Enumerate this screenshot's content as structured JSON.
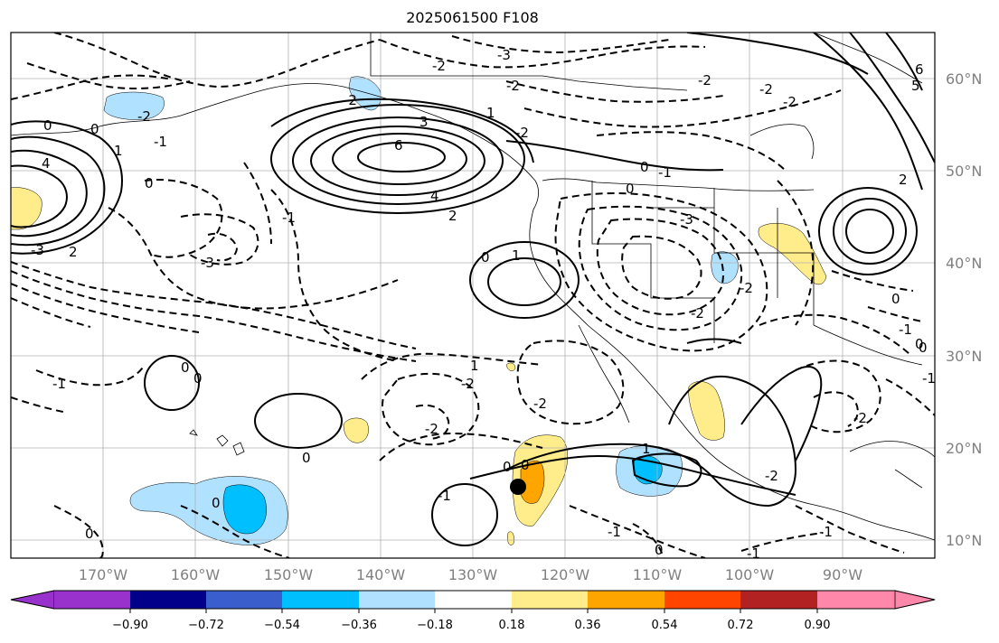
{
  "title": "2025061500 F108",
  "lat_labels": [
    "60°N",
    "50°N",
    "40°N",
    "30°N",
    "20°N",
    "10°N"
  ],
  "lon_labels": [
    "170°W",
    "160°W",
    "150°W",
    "140°W",
    "130°W",
    "120°W",
    "110°W",
    "100°W",
    "90°W"
  ],
  "colorbar": {
    "ticks": [
      "−0.90",
      "−0.72",
      "−0.54",
      "−0.36",
      "−0.18",
      "0.18",
      "0.36",
      "0.54",
      "0.72",
      "0.90"
    ],
    "colors": [
      "#9932CC",
      "#00008B",
      "#3A5FCD",
      "#00BFFF",
      "#B0E2FF",
      "#FFFFFF",
      "#FFEC8B",
      "#FFA500",
      "#FF4500",
      "#B22222",
      "#FF88AA"
    ]
  },
  "contour_labels": [
    "-3",
    "-2",
    "-2",
    "0",
    "0",
    "-2",
    "-2",
    "0",
    "1",
    "-2",
    "-1",
    "0",
    "4",
    "6",
    "3",
    "4",
    "2",
    "1",
    "-2",
    "0",
    "-3",
    "-1",
    "1",
    "0",
    "-2",
    "-2",
    "-3",
    "2",
    "0",
    "-1",
    "0",
    "-3",
    "0",
    "1",
    "-2",
    "-1",
    "-2",
    "-2",
    "0",
    "0",
    "-2",
    "0",
    "0",
    "1",
    "-1",
    "0",
    "-1",
    "-2",
    "-1",
    "-1",
    "0",
    "-2",
    "-2",
    "2",
    "-1",
    "-1",
    "0",
    "0",
    "6",
    "5"
  ],
  "storm_marker": "black-dot"
}
